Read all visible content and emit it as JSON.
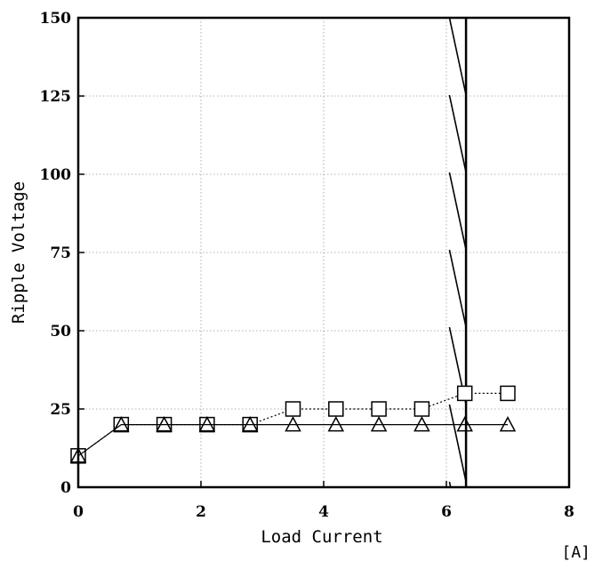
{
  "chart_data": {
    "type": "line",
    "title": "",
    "xlabel": "Load Current",
    "ylabel": "Ripple Voltage",
    "x_unit": "[A]",
    "xlim": [
      0,
      8
    ],
    "ylim": [
      0,
      150
    ],
    "xticks": [
      0,
      2,
      4,
      6,
      8
    ],
    "yticks": [
      0,
      25,
      50,
      75,
      100,
      125,
      150
    ],
    "grid": true,
    "legend": "none",
    "series": [
      {
        "marker": "square",
        "line_style": "dotted",
        "x": [
          0,
          0.7,
          1.4,
          2.1,
          2.8,
          3.5,
          4.2,
          4.9,
          5.6,
          6.3,
          7.0
        ],
        "y": [
          10,
          20,
          20,
          20,
          20,
          25,
          25,
          25,
          25,
          30,
          30
        ]
      },
      {
        "marker": "triangle",
        "line_style": "solid",
        "x": [
          0,
          0.7,
          1.4,
          2.1,
          2.8,
          3.5,
          4.2,
          4.9,
          5.6,
          6.3,
          7.0
        ],
        "y": [
          10,
          20,
          20,
          20,
          20,
          20,
          20,
          20,
          20,
          20,
          20
        ]
      }
    ],
    "hatched_region": {
      "x_from": 6.05,
      "x_to": 6.32
    }
  }
}
